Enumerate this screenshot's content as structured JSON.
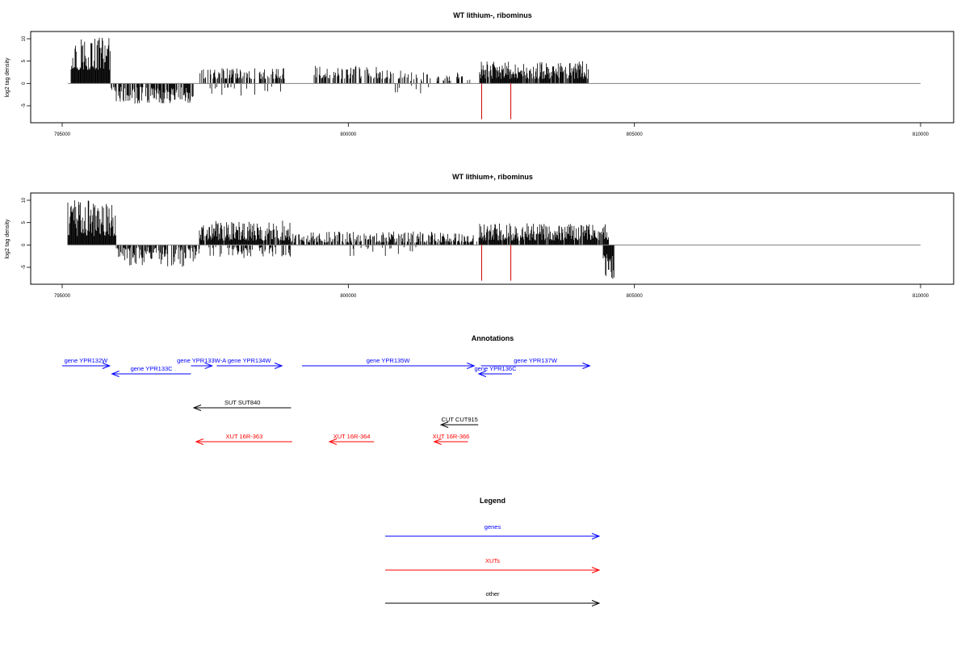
{
  "colors": {
    "genes": "#0000ff",
    "xuts": "#ff0000",
    "other": "#000000",
    "axis": "#000000",
    "baseline": "#808080",
    "marker": "#d00000"
  },
  "panels": [
    {
      "title": "WT lithium-, ribominus",
      "ylabel": "log2 tag density",
      "chart_data": {
        "type": "bar",
        "xlim": [
          795000,
          810000
        ],
        "ylim": [
          -8,
          11
        ],
        "xticks": [
          795000,
          800000,
          805000,
          810000
        ],
        "yticks": [
          -5,
          0,
          5,
          10
        ],
        "baseline_range": [
          795100,
          810000
        ],
        "segments": [
          {
            "from": 795150,
            "to": 795850,
            "sign": 1,
            "min": 3,
            "max": 11,
            "density": 1.0
          },
          {
            "from": 795850,
            "to": 797300,
            "sign": -1,
            "min": 0.8,
            "max": 4.5,
            "density": 0.7
          },
          {
            "from": 797400,
            "to": 798900,
            "sign": 1,
            "min": 1,
            "max": 3.5,
            "density": 0.55
          },
          {
            "from": 797550,
            "to": 798900,
            "sign": -1,
            "min": 0.5,
            "max": 3,
            "density": 0.15
          },
          {
            "from": 799400,
            "to": 801000,
            "sign": 1,
            "min": 1,
            "max": 4,
            "density": 0.5
          },
          {
            "from": 801000,
            "to": 802200,
            "sign": 1,
            "min": 0.5,
            "max": 2.5,
            "density": 0.3
          },
          {
            "from": 800800,
            "to": 801500,
            "sign": -1,
            "min": 0.5,
            "max": 2.5,
            "density": 0.1
          },
          {
            "from": 802300,
            "to": 804200,
            "sign": 1,
            "min": 1,
            "max": 5,
            "density": 0.9
          }
        ],
        "markers": [
          802330,
          802840
        ],
        "marker_depth": -8
      }
    },
    {
      "title": "WT lithium+, ribominus",
      "ylabel": "log2 tag density",
      "chart_data": {
        "type": "bar",
        "xlim": [
          795000,
          810000
        ],
        "ylim": [
          -8,
          11
        ],
        "xticks": [
          795000,
          800000,
          805000,
          810000
        ],
        "yticks": [
          -5,
          0,
          5,
          10
        ],
        "baseline_range": [
          795100,
          810000
        ],
        "segments": [
          {
            "from": 795100,
            "to": 795950,
            "sign": 1,
            "min": 2,
            "max": 10,
            "density": 1.0
          },
          {
            "from": 795950,
            "to": 797400,
            "sign": -1,
            "min": 0.5,
            "max": 5,
            "density": 0.7
          },
          {
            "from": 797400,
            "to": 799000,
            "sign": 1,
            "min": 1,
            "max": 5.5,
            "density": 0.9
          },
          {
            "from": 797550,
            "to": 799000,
            "sign": -1,
            "min": 0.5,
            "max": 3,
            "density": 0.35
          },
          {
            "from": 799000,
            "to": 802300,
            "sign": 1,
            "min": 0.5,
            "max": 3,
            "density": 0.6
          },
          {
            "from": 799800,
            "to": 801200,
            "sign": -1,
            "min": 0.5,
            "max": 2.5,
            "density": 0.1
          },
          {
            "from": 802300,
            "to": 804550,
            "sign": 1,
            "min": 1,
            "max": 5,
            "density": 0.9
          },
          {
            "from": 804450,
            "to": 804650,
            "sign": -1,
            "min": 2,
            "max": 8,
            "density": 1.0
          }
        ],
        "markers": [
          802330,
          802840
        ],
        "marker_depth": -8
      }
    }
  ],
  "annotations": {
    "title": "Annotations",
    "items": [
      {
        "label": "gene YPR132W",
        "kind": "gene",
        "strand": "+",
        "start": 795000,
        "end": 795830,
        "row": 0
      },
      {
        "label": "gene YPR133C",
        "kind": "gene",
        "strand": "-",
        "start": 795870,
        "end": 797250,
        "row": 1
      },
      {
        "label": "gene YPR133W-A",
        "kind": "gene",
        "strand": "+",
        "start": 797250,
        "end": 797620,
        "row": 0
      },
      {
        "label": "gene YPR134W",
        "kind": "gene",
        "strand": "+",
        "start": 797700,
        "end": 798840,
        "row": 0
      },
      {
        "label": "gene YPR135W",
        "kind": "gene",
        "strand": "+",
        "start": 799190,
        "end": 802200,
        "row": 0
      },
      {
        "label": "gene YPR136C",
        "kind": "gene",
        "strand": "-",
        "start": 802280,
        "end": 802860,
        "row": 1
      },
      {
        "label": "gene YPR137W",
        "kind": "gene",
        "strand": "+",
        "start": 802320,
        "end": 804220,
        "row": 0
      },
      {
        "label": "SUT SUT840",
        "kind": "other",
        "strand": "-",
        "start": 797300,
        "end": 799000,
        "row": 3
      },
      {
        "label": "CUT CUT915",
        "kind": "other",
        "strand": "-",
        "start": 801620,
        "end": 802270,
        "row": 4
      },
      {
        "label": "XUT 16R-363",
        "kind": "xut",
        "strand": "-",
        "start": 797340,
        "end": 799020,
        "row": 5
      },
      {
        "label": "XUT 16R-364",
        "kind": "xut",
        "strand": "-",
        "start": 799670,
        "end": 800450,
        "row": 5
      },
      {
        "label": "XUT 16R-366",
        "kind": "xut",
        "strand": "-",
        "start": 801500,
        "end": 802090,
        "row": 5
      }
    ]
  },
  "legend": {
    "title": "Legend",
    "items": [
      {
        "label": "genes",
        "kind": "gene"
      },
      {
        "label": "XUTs",
        "kind": "xut"
      },
      {
        "label": "other",
        "kind": "other"
      }
    ]
  }
}
